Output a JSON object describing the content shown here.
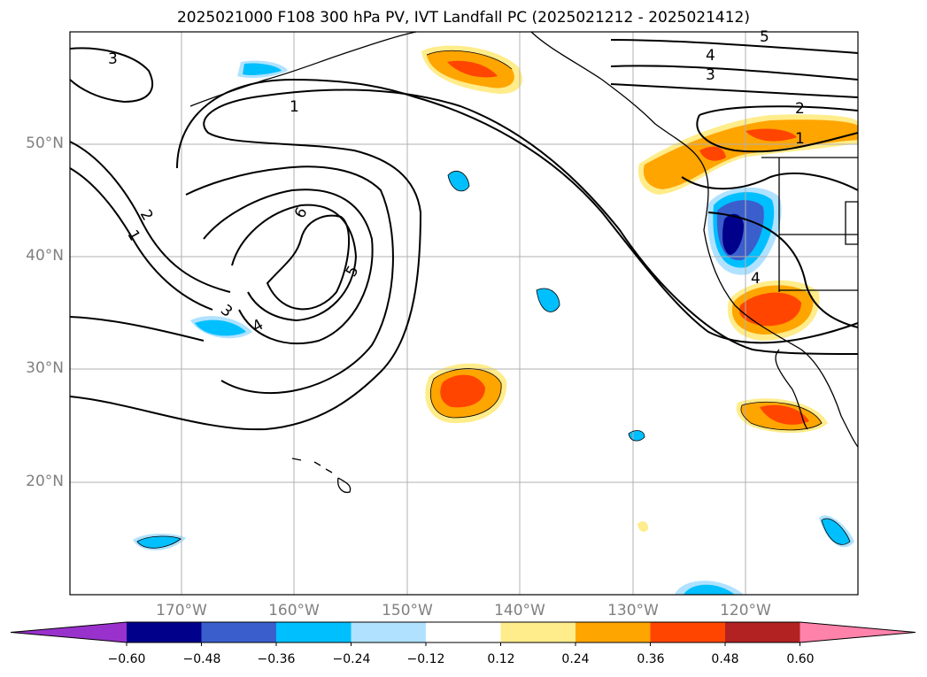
{
  "title": "2025021000 F108 300 hPa PV, IVT Landfall PC (2025021212 - 2025021412)",
  "lat_labels": [
    "50°N",
    "40°N",
    "30°N",
    "20°N"
  ],
  "lon_labels": [
    "170°W",
    "160°W",
    "150°W",
    "140°W",
    "130°W",
    "120°W"
  ],
  "contour_labels": [
    "3",
    "1",
    "2",
    "1",
    "6",
    "5",
    "3",
    "4",
    "4",
    "3",
    "2",
    "1",
    "4",
    "5"
  ],
  "colorbar": {
    "ticks": [
      "−0.60",
      "−0.48",
      "−0.36",
      "−0.24",
      "−0.12",
      "0.12",
      "0.24",
      "0.36",
      "0.48",
      "0.60"
    ],
    "colors": [
      "#9932cc",
      "#00008b",
      "#3a5fcd",
      "#00bfff",
      "#b0e2ff",
      "#ffffff",
      "#ffec8b",
      "#ffa500",
      "#ff4500",
      "#b22222",
      "#ff82ab"
    ]
  },
  "colors": {
    "blue_light": "#00bfff",
    "blue_pale": "#b0e2ff",
    "blue_mid": "#3a5fcd",
    "blue_dark": "#00008b",
    "yellow": "#ffec8b",
    "orange": "#ffa500",
    "red": "#ff4500",
    "grid": "#b0b0b0"
  }
}
